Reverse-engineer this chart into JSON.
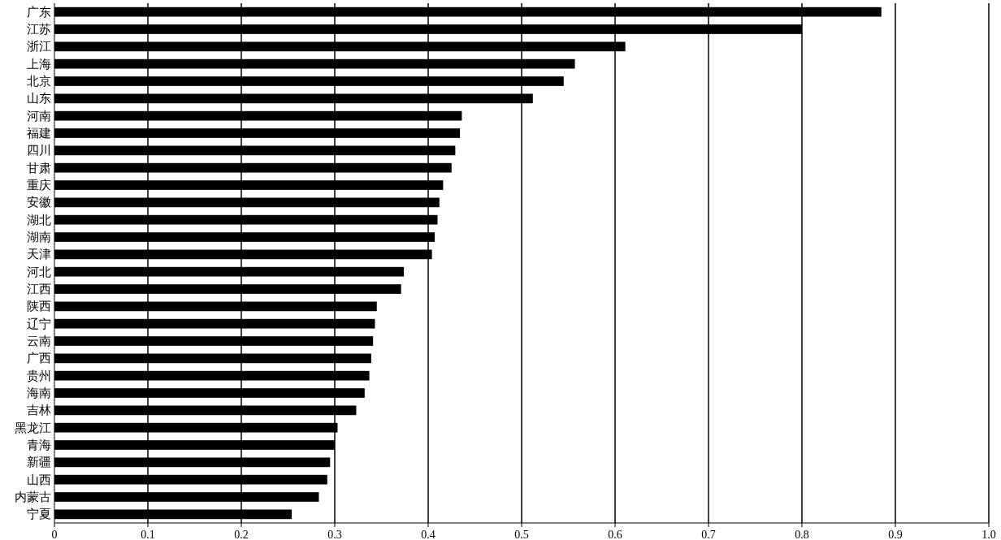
{
  "chart_data": {
    "type": "bar",
    "orientation": "horizontal",
    "categories": [
      "广东",
      "江苏",
      "浙江",
      "上海",
      "北京",
      "山东",
      "河南",
      "福建",
      "四川",
      "甘肃",
      "重庆",
      "安徽",
      "湖北",
      "湖南",
      "天津",
      "河北",
      "江西",
      "陕西",
      "辽宁",
      "云南",
      "广西",
      "贵州",
      "海南",
      "吉林",
      "黑龙江",
      "青海",
      "新疆",
      "山西",
      "内蒙古",
      "宁夏"
    ],
    "values": [
      0.885,
      0.8,
      0.611,
      0.557,
      0.545,
      0.512,
      0.436,
      0.434,
      0.429,
      0.425,
      0.416,
      0.412,
      0.41,
      0.407,
      0.404,
      0.374,
      0.371,
      0.345,
      0.343,
      0.341,
      0.339,
      0.337,
      0.332,
      0.323,
      0.303,
      0.3,
      0.295,
      0.292,
      0.283,
      0.254
    ],
    "color": "#000000",
    "xlim": [
      0,
      1.0
    ],
    "xticks": [
      0,
      0.1,
      0.2,
      0.3,
      0.4,
      0.5,
      0.6,
      0.7,
      0.8,
      0.9,
      {
        "value": 1.0,
        "label": "1.0"
      }
    ],
    "grid": "x"
  }
}
